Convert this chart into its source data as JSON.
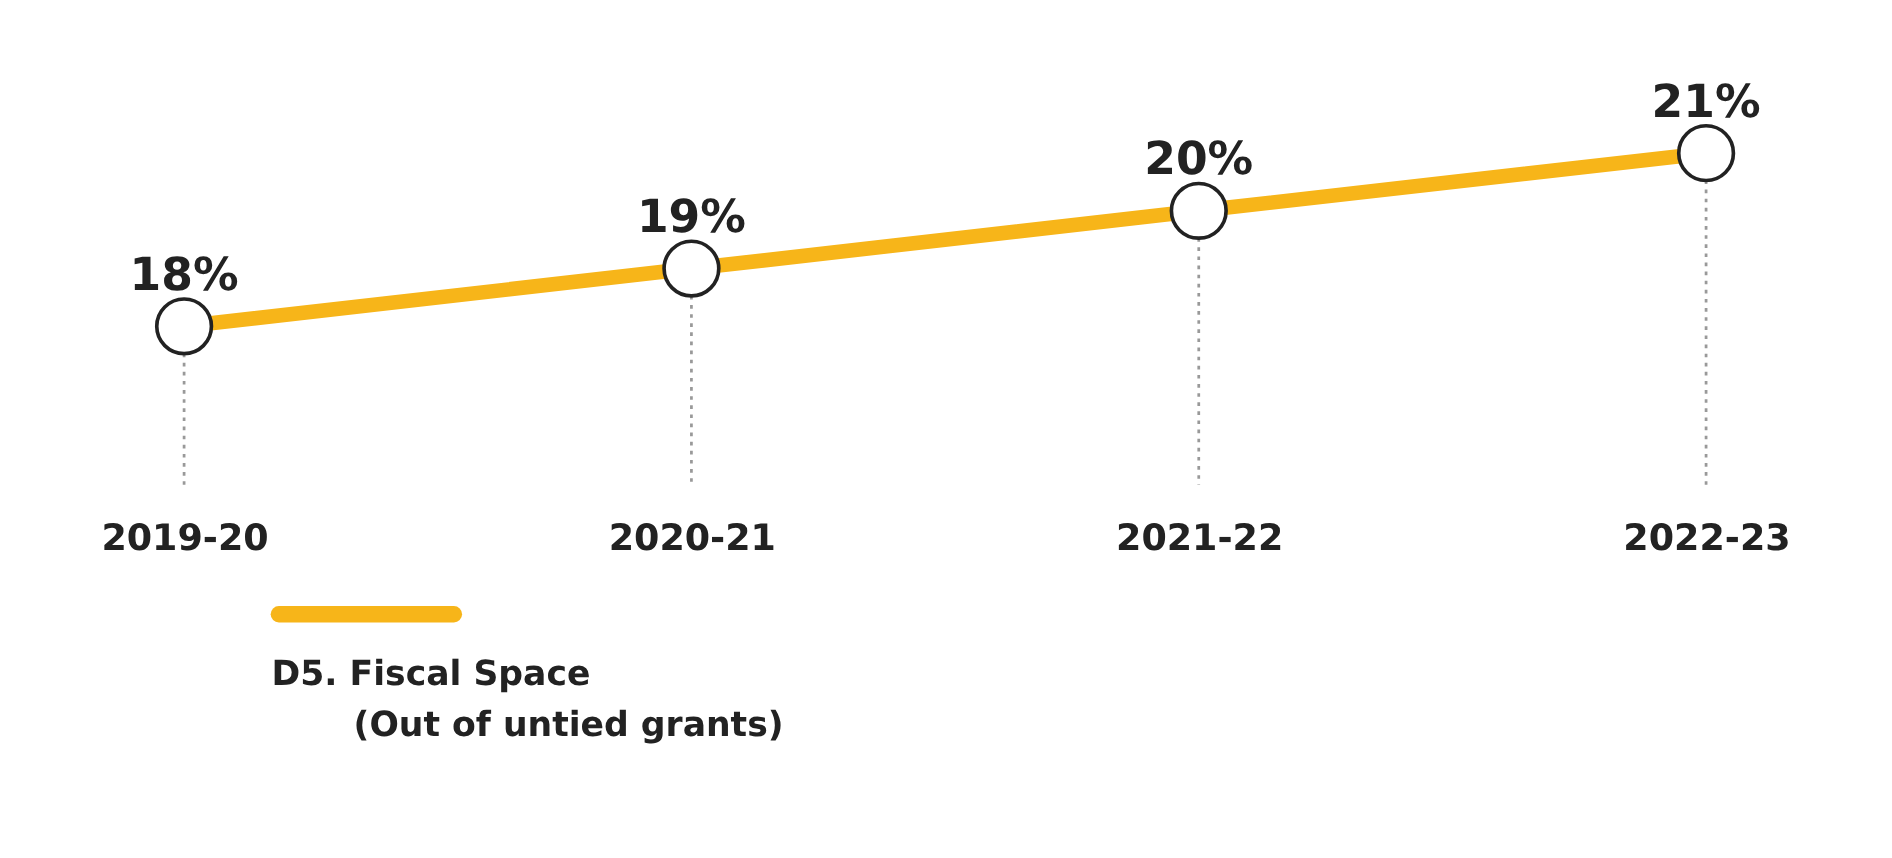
{
  "chart_data": {
    "type": "line",
    "categories": [
      "2019-20",
      "2020-21",
      "2021-22",
      "2022-23"
    ],
    "series": [
      {
        "name": "D5. Fiscal Space (Out of untied grants)",
        "color": "#f7b519",
        "values": [
          18,
          19,
          20,
          21
        ],
        "value_labels": [
          "18%",
          "19%",
          "20%",
          "21%"
        ]
      }
    ],
    "tick_labels": "x",
    "marker": "circle",
    "line_style": "solid",
    "grid": "x",
    "legend": "bottom left"
  }
}
